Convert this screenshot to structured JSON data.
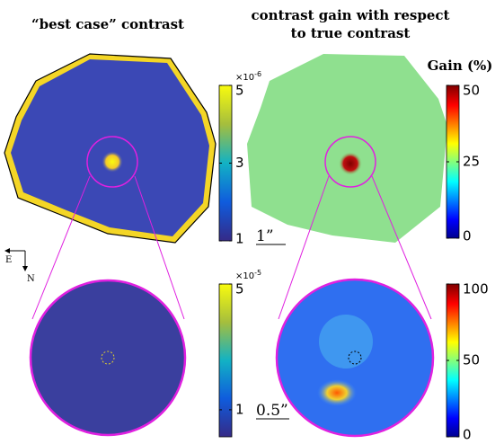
{
  "panels": [
    {
      "title": "“best case” contrast"
    },
    {
      "title_lines": [
        "contrast gain with respect",
        "to true contrast"
      ]
    }
  ],
  "gain_label": "Gain (%)",
  "colorbars": [
    {
      "exponent_base": "×10",
      "exponent": "-6",
      "lim": [
        1,
        5
      ],
      "ticks": [
        5,
        3,
        1
      ],
      "map": "parula"
    },
    {
      "lim": [
        0,
        50
      ],
      "ticks": [
        50,
        25,
        0
      ],
      "map": "jet"
    },
    {
      "exponent_base": "×10",
      "exponent": "-5",
      "lim": [
        0.14,
        5
      ],
      "ticks": [
        5,
        1
      ],
      "map": "parula"
    },
    {
      "lim": [
        0,
        100
      ],
      "ticks": [
        100,
        50,
        0
      ],
      "map": "jet"
    }
  ],
  "scale_bars": [
    "1”",
    "0.5”"
  ],
  "compass": {
    "east": "E",
    "north": "N"
  }
}
